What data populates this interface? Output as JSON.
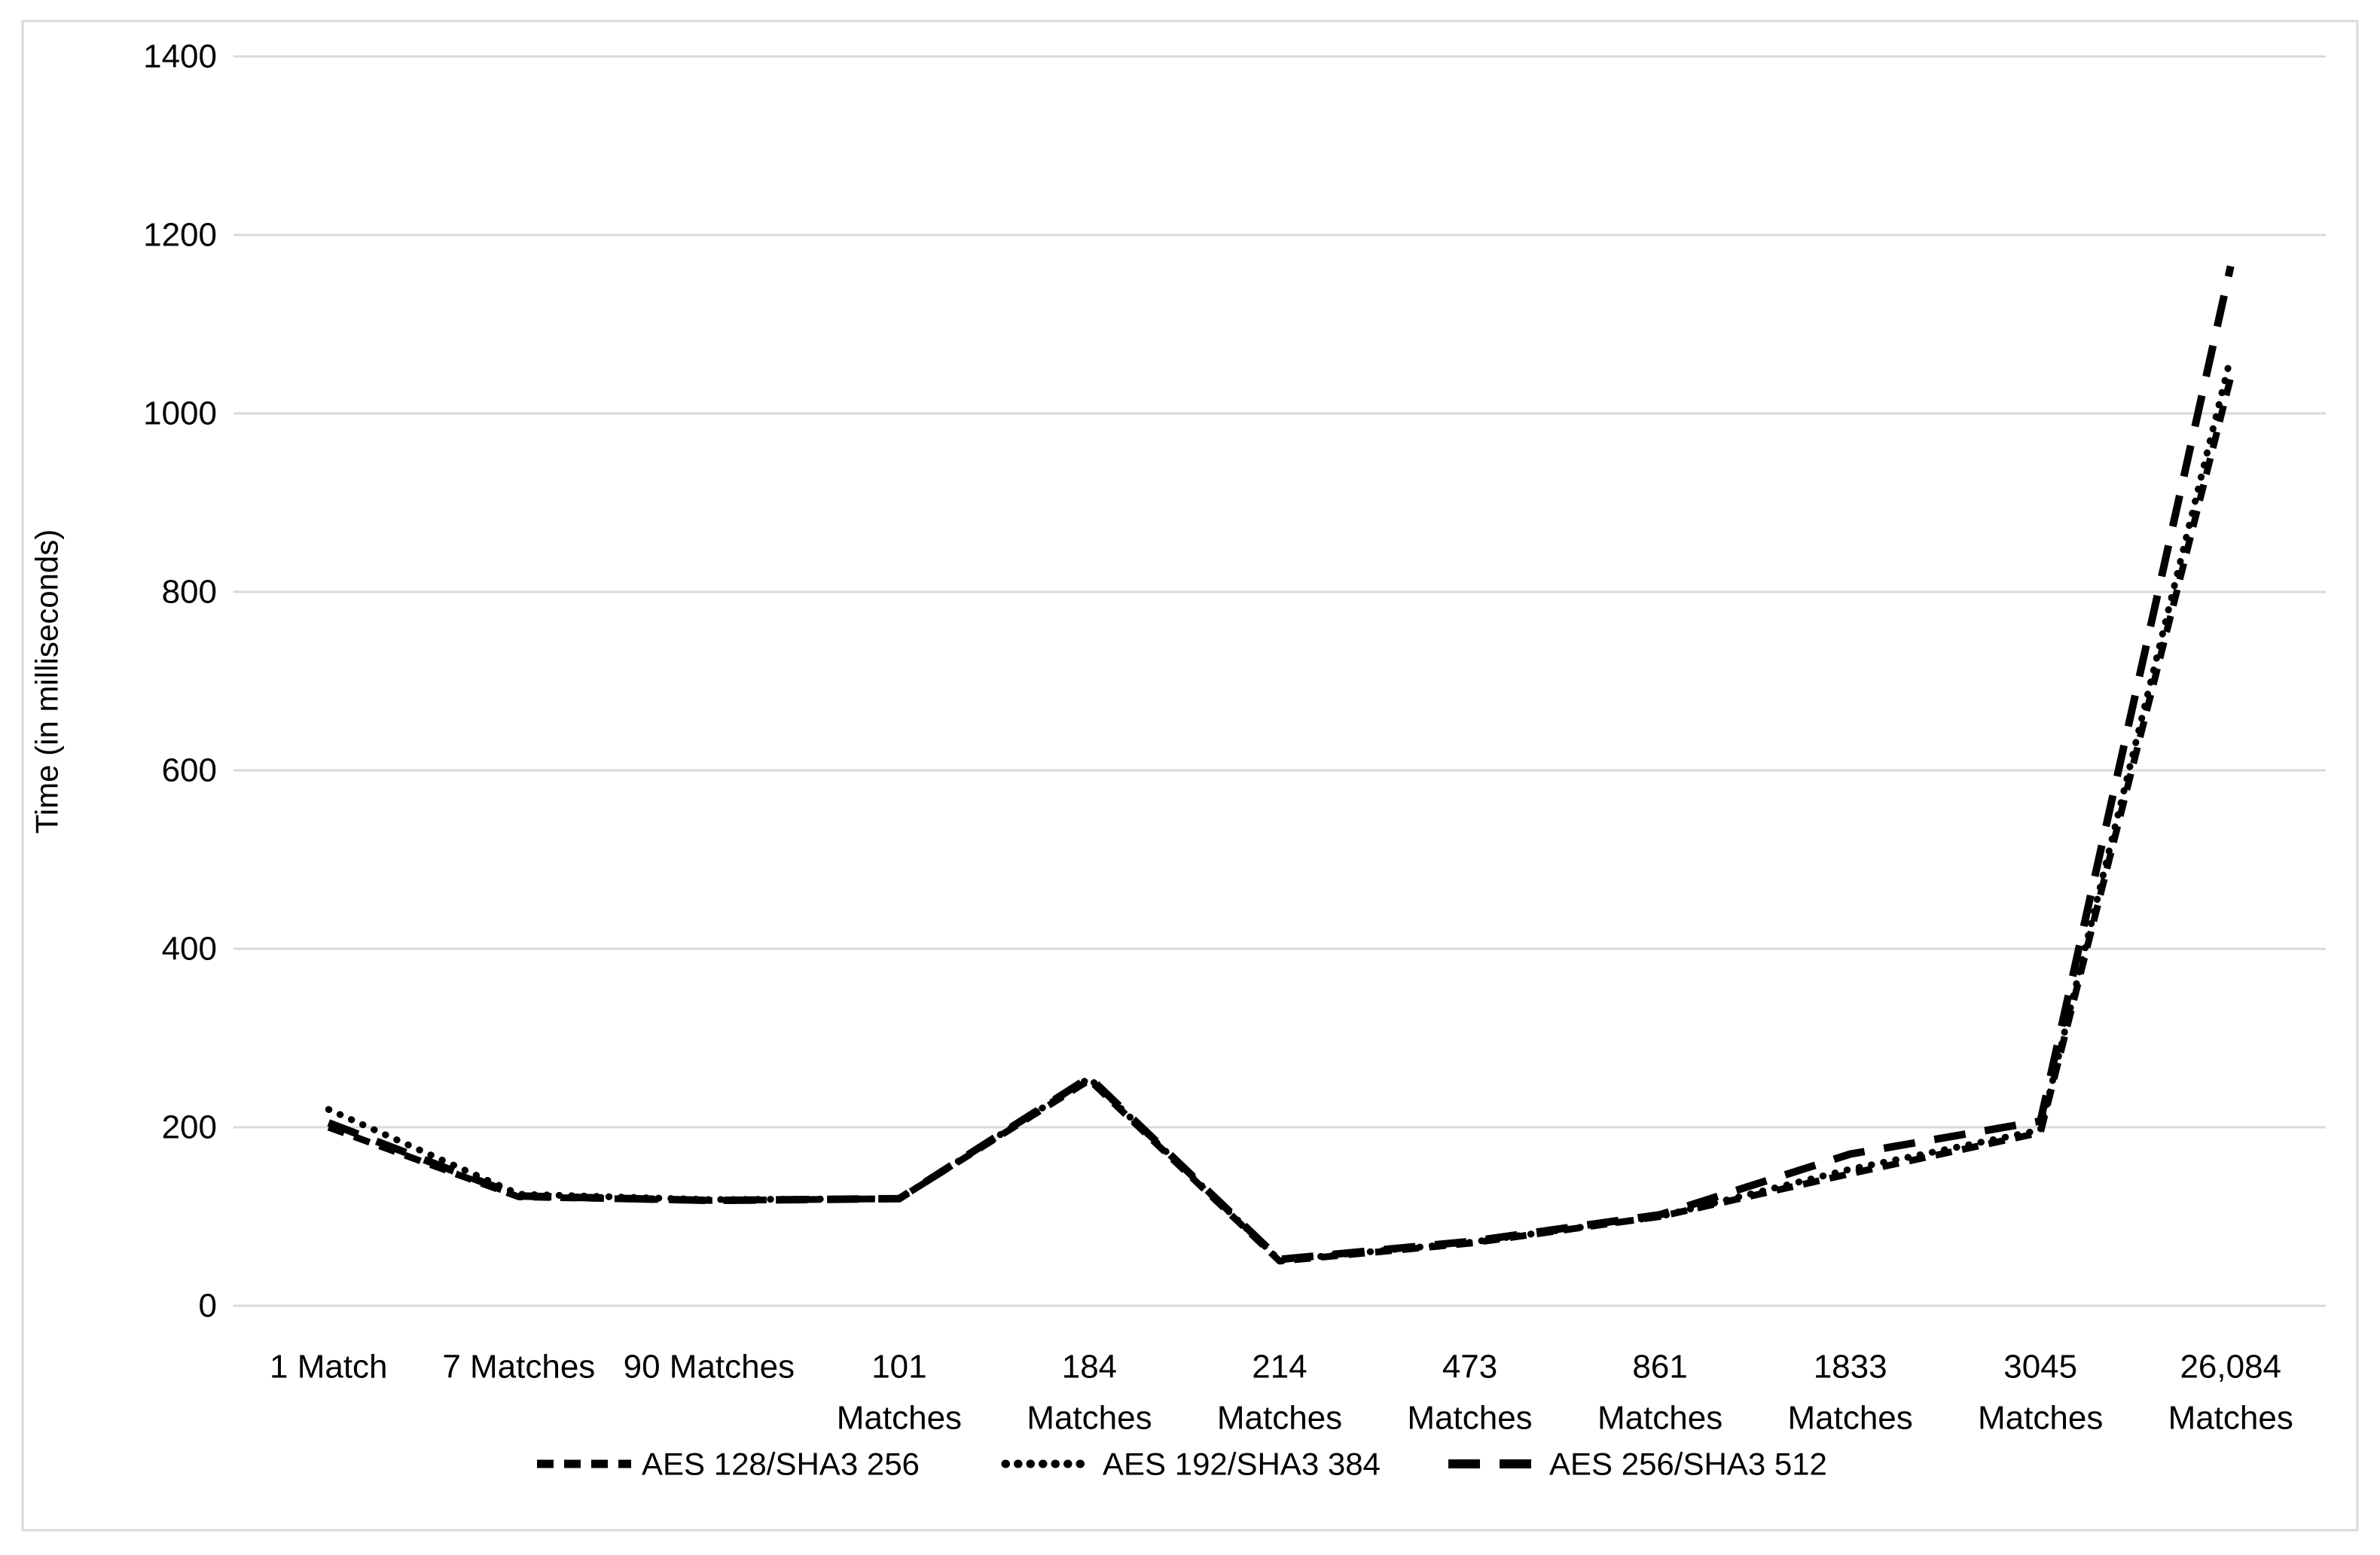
{
  "chart_data": {
    "type": "line",
    "title": "",
    "xlabel": "",
    "ylabel": "Time (in milliseconds)",
    "ylim": [
      0,
      1400
    ],
    "y_tick_step": 200,
    "y_tick_labels_top_to_bottom": [
      "1400",
      "1200",
      "1000",
      "800",
      "600",
      "400",
      "200",
      "0"
    ],
    "grid": true,
    "legend_position": "bottom",
    "categories": [
      "1 Match",
      "7 Matches",
      "90 Matches",
      "101 Matches",
      "184 Matches",
      "214 Matches",
      "473 Matches",
      "861 Matches",
      "1833 Matches",
      "3045 Matches",
      "26,084 Matches"
    ],
    "category_label_lines": [
      [
        "1 Match"
      ],
      [
        "7 Matches"
      ],
      [
        "90 Matches"
      ],
      [
        "101",
        "Matches"
      ],
      [
        "184",
        "Matches"
      ],
      [
        "214",
        "Matches"
      ],
      [
        "473",
        "Matches"
      ],
      [
        "861",
        "Matches"
      ],
      [
        "1833",
        "Matches"
      ],
      [
        "3045",
        "Matches"
      ],
      [
        "26,084",
        "Matches"
      ]
    ],
    "series": [
      {
        "name": "AES 128/SHA3 256",
        "line_style": "short-dash",
        "color": "#000000",
        "values": [
          200,
          122,
          118,
          120,
          253,
          50,
          70,
          100,
          148,
          194,
          1040
        ]
      },
      {
        "name": "AES 192/SHA3 384",
        "line_style": "dotted",
        "color": "#000000",
        "values": [
          220,
          125,
          119,
          120,
          255,
          51,
          71,
          100,
          153,
          197,
          1063
        ]
      },
      {
        "name": "AES 256/SHA3 512",
        "line_style": "long-dash",
        "color": "#000000",
        "values": [
          205,
          123,
          118,
          120,
          256,
          52,
          72,
          102,
          170,
          207,
          1165
        ]
      }
    ]
  },
  "colors": {
    "background": "#ffffff",
    "chart_border": "#d9d9d9",
    "gridline": "#d9d9d9",
    "text": "#000000",
    "line": "#000000"
  }
}
